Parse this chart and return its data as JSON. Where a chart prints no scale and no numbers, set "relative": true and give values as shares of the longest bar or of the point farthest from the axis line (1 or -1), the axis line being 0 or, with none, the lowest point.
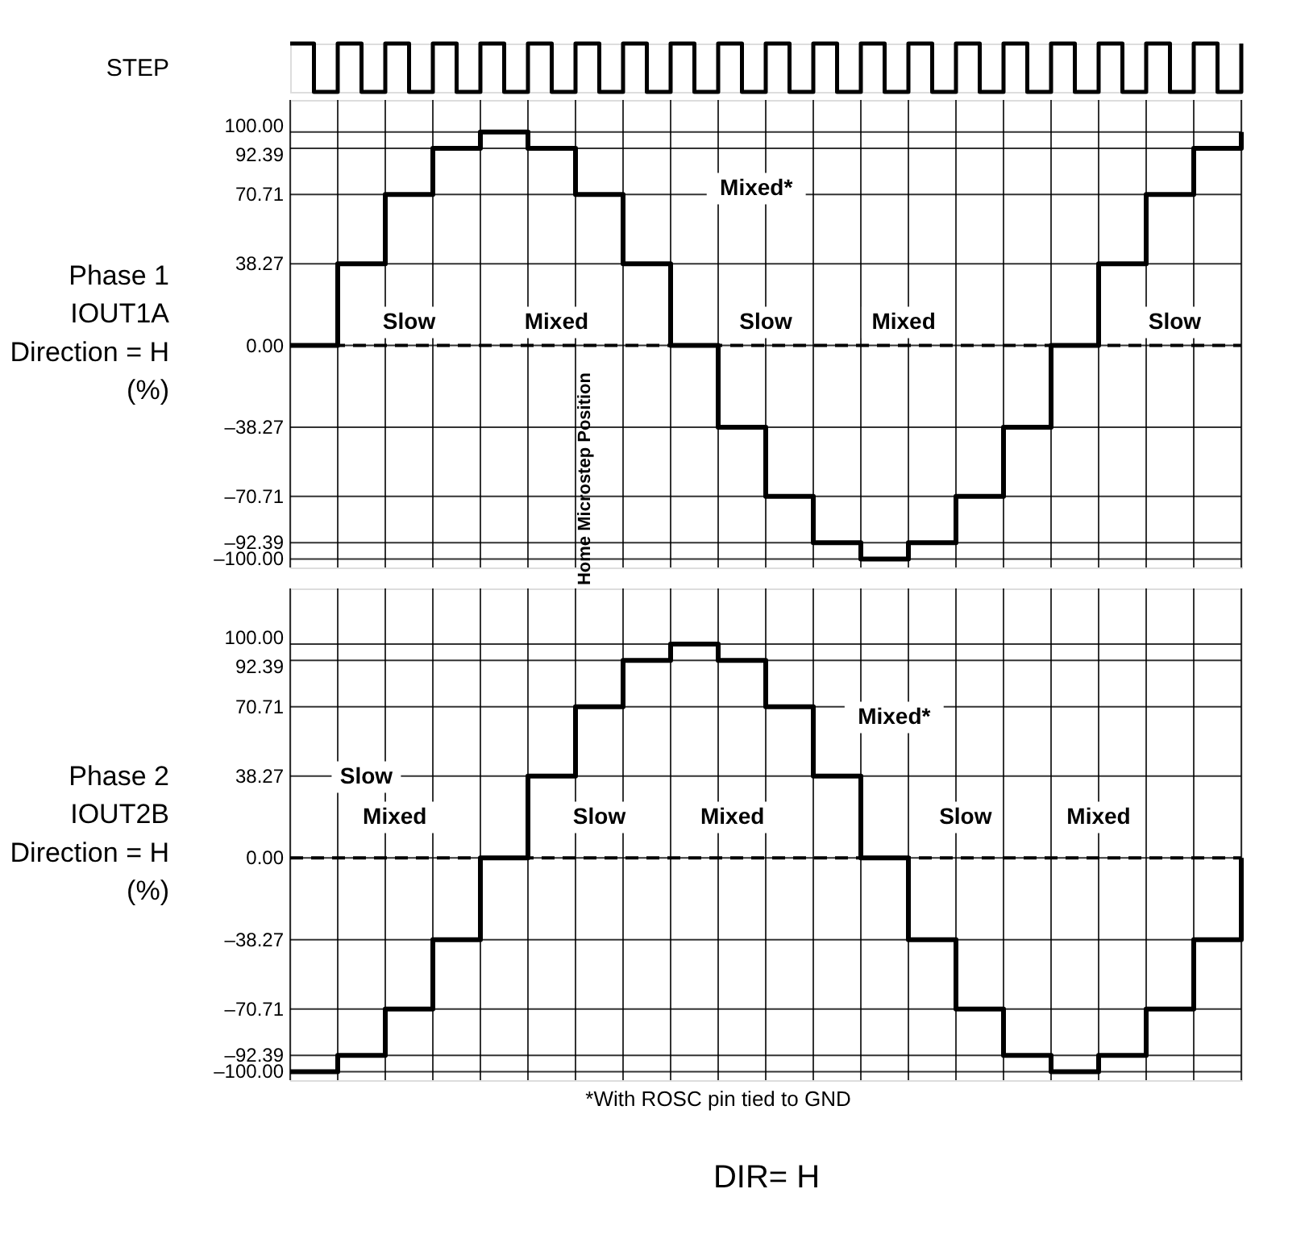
{
  "chart_data": [
    {
      "type": "step",
      "relative": true,
      "ylabel": "STEP",
      "tick_labels": false,
      "grid": false,
      "categories": [
        null,
        null,
        null,
        null,
        null,
        null,
        null,
        null,
        null,
        null,
        null,
        null,
        null,
        null,
        null,
        null,
        null,
        null,
        null,
        null,
        null,
        null,
        null,
        null,
        null,
        null,
        null,
        null,
        null,
        null,
        null,
        null,
        null,
        null,
        null,
        null,
        null,
        null,
        null,
        null,
        null
      ],
      "series": [
        {
          "color": "#000000",
          "values": [
            1,
            0,
            1,
            0,
            1,
            0,
            1,
            0,
            1,
            0,
            1,
            0,
            1,
            0,
            1,
            0,
            1,
            0,
            1,
            0,
            1,
            0,
            1,
            0,
            1,
            0,
            1,
            0,
            1,
            0,
            1,
            0,
            1,
            0,
            1,
            0,
            1,
            0,
            1,
            0,
            1
          ]
        }
      ]
    },
    {
      "type": "step",
      "ylabel": "Phase 1\nIOUT1A\nDirection = H\n(%)",
      "tick_labels": "y",
      "grid": true,
      "categories": [
        null,
        null,
        null,
        null,
        null,
        null,
        null,
        null,
        null,
        null,
        null,
        null,
        null,
        null,
        null,
        null,
        null,
        null,
        null,
        null,
        null
      ],
      "series": [
        {
          "color": "#000000",
          "values": [
            0,
            38.27,
            70.71,
            92.39,
            100,
            92.39,
            70.71,
            38.27,
            0,
            -38.27,
            -70.71,
            -92.39,
            -100,
            -92.39,
            -70.71,
            -38.27,
            0,
            38.27,
            70.71,
            92.39,
            100
          ]
        }
      ],
      "ylim": [
        -104,
        115
      ],
      "yticks": [
        {
          "value": 100,
          "label": "100.00"
        },
        {
          "value": 92.39,
          "label": "92.39"
        },
        {
          "value": 70.71,
          "label": "70.71"
        },
        {
          "value": 38.27,
          "label": "38.27"
        },
        {
          "value": 0,
          "label": "0.00"
        },
        {
          "value": -38.27,
          "label": "–38.27"
        },
        {
          "value": -70.71,
          "label": "–70.71"
        },
        {
          "value": -92.39,
          "label": "–92.39"
        },
        {
          "value": -100,
          "label": "–100.00"
        }
      ],
      "ref_lines": [
        {
          "axis": "y",
          "value": 0,
          "line_style": "dashed",
          "color": "#000000"
        }
      ],
      "annotations": [
        "Mixed*",
        "Slow",
        "Mixed",
        "Slow",
        "Mixed",
        "Slow",
        "Home Microstep Position"
      ]
    },
    {
      "type": "step",
      "ylabel": "Phase 2\nIOUT2B\nDirection = H\n(%)",
      "xlabel": "DIR= H",
      "tick_labels": "y",
      "grid": true,
      "categories": [
        null,
        null,
        null,
        null,
        null,
        null,
        null,
        null,
        null,
        null,
        null,
        null,
        null,
        null,
        null,
        null,
        null,
        null,
        null,
        null,
        null
      ],
      "series": [
        {
          "color": "#000000",
          "values": [
            -100,
            -92.39,
            -70.71,
            -38.27,
            0,
            38.27,
            70.71,
            92.39,
            100,
            92.39,
            70.71,
            38.27,
            0,
            -38.27,
            -70.71,
            -92.39,
            -100,
            -92.39,
            -70.71,
            -38.27,
            0
          ]
        }
      ],
      "ylim": [
        -104,
        126
      ],
      "yticks": [
        {
          "value": 100,
          "label": "100.00"
        },
        {
          "value": 92.39,
          "label": "92.39"
        },
        {
          "value": 70.71,
          "label": "70.71"
        },
        {
          "value": 38.27,
          "label": "38.27"
        },
        {
          "value": 0,
          "label": "0.00"
        },
        {
          "value": -38.27,
          "label": "–38.27"
        },
        {
          "value": -70.71,
          "label": "–70.71"
        },
        {
          "value": -92.39,
          "label": "–92.39"
        },
        {
          "value": -100,
          "label": "–100.00"
        }
      ],
      "ref_lines": [
        {
          "axis": "y",
          "value": 0,
          "line_style": "dashed",
          "color": "#000000"
        }
      ],
      "annotations": [
        "Mixed*",
        "Slow",
        "Mixed",
        "Slow",
        "Mixed",
        "Slow",
        "Mixed",
        "*With ROSC pin tied to GND"
      ]
    }
  ]
}
